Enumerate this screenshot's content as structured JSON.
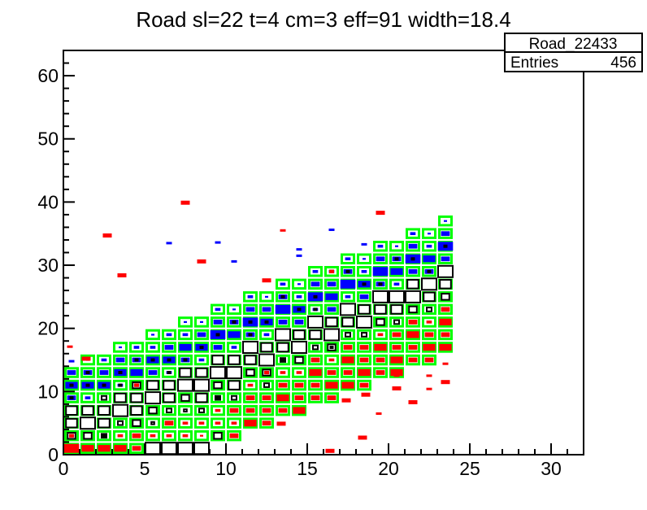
{
  "page_title": "Road sl=22 t=4 cm=3 eff=91 width=18.4",
  "stats_box": {
    "title": "Road_22433",
    "entries_label": "Entries",
    "entries_value": "456"
  },
  "colors": {
    "background": "#ffffff",
    "frame": "#000000",
    "road_outline": "#00ff00",
    "open_box_fill": "#ffffff",
    "open_box_line": "#000000",
    "blue_box": "#0000ff",
    "red_box": "#ff0000"
  },
  "chart_data": {
    "type": "heatmap",
    "subtype": "root-th2-box-overlay",
    "title": "Road sl=22 t=4 cm=3 eff=91 width=18.4",
    "histogram_name": "Road_22433",
    "entries": 456,
    "xlabel": "",
    "ylabel": "",
    "x_range": [
      0,
      32
    ],
    "y_range": [
      0,
      64
    ],
    "x_major_ticks": [
      0,
      5,
      10,
      15,
      20,
      25,
      30
    ],
    "x_minor_step": 1,
    "y_major_ticks": [
      0,
      10,
      20,
      30,
      40,
      50,
      60
    ],
    "y_minor_step": 2,
    "grid": false,
    "legend_position": "none",
    "bin_width": 1,
    "bin_height": 2,
    "size_fractions": {
      "1": 0.18,
      "2": 0.3,
      "3": 0.48,
      "4": 0.68,
      "5": 0.9
    },
    "cell_code_format": "color letter (b=blue filled, w=white open, r=red filled) + size digit 1-5 + optional dot (d=black inner box, e=red inner box); cells listed from road top row to road bottom row",
    "road_columns": [
      {
        "x": 0,
        "row_lo": 0,
        "row_hi": 6,
        "cells_top_to_bottom": [
          "b3",
          "b4d",
          "b3d",
          "w4",
          "w4",
          "w3e",
          "r5"
        ]
      },
      {
        "x": 1,
        "row_lo": 0,
        "row_hi": 7,
        "cells_top_to_bottom": [
          "r1",
          "b3d",
          "b4d",
          "b2",
          "w4",
          "w5",
          "w3",
          "r4"
        ]
      },
      {
        "x": 2,
        "row_lo": 0,
        "row_hi": 7,
        "cells_top_to_bottom": [
          "b2",
          "b3",
          "b4d",
          "w2",
          "w4",
          "w4",
          "w2d",
          "r4"
        ]
      },
      {
        "x": 3,
        "row_lo": 0,
        "row_hi": 8,
        "cells_top_to_bottom": [
          "b1",
          "b3",
          "b4d",
          "b2d",
          "w4",
          "w5",
          "w2",
          "r2",
          "r4"
        ]
      },
      {
        "x": 4,
        "row_lo": 0,
        "row_hi": 8,
        "cells_top_to_bottom": [
          "b2",
          "b3d",
          "b4",
          "w3e",
          "w4",
          "w4",
          "w3",
          "r3",
          "r3"
        ]
      },
      {
        "x": 5,
        "row_lo": 0,
        "row_hi": 9,
        "cells_top_to_bottom": [
          "b1",
          "b2",
          "b4d",
          "b3",
          "w4",
          "w5",
          "w3",
          "w1",
          "r2",
          "w5"
        ]
      },
      {
        "x": 6,
        "row_lo": 0,
        "row_hi": 9,
        "cells_top_to_bottom": [
          "b2",
          "b3",
          "b4d",
          "b2d",
          "w4",
          "w4",
          "w2",
          "r3",
          "r2",
          "w5"
        ]
      },
      {
        "x": 7,
        "row_lo": 0,
        "row_hi": 10,
        "cells_top_to_bottom": [
          "b1",
          "b2",
          "b4",
          "b3d",
          "w4",
          "w5",
          "w3",
          "w1",
          "r2",
          "r2",
          "w5"
        ]
      },
      {
        "x": 8,
        "row_lo": 0,
        "row_hi": 10,
        "cells_top_to_bottom": [
          "b1",
          "b3",
          "b4d",
          "b2",
          "w4",
          "w5",
          "w4",
          "w2",
          "r2",
          "r1",
          "w5"
        ]
      },
      {
        "x": 9,
        "row_lo": 1,
        "row_hi": 11,
        "cells_top_to_bottom": [
          "b2",
          "b3",
          "b5d",
          "b3",
          "w4",
          "w5",
          "w3",
          "w2d",
          "r2",
          "r2",
          "w3"
        ]
      },
      {
        "x": 10,
        "row_lo": 1,
        "row_hi": 11,
        "cells_top_to_bottom": [
          "b1",
          "b3d",
          "b4",
          "b2",
          "w4",
          "w5",
          "w4",
          "w2",
          "r3",
          "r2",
          "r3"
        ]
      },
      {
        "x": 11,
        "row_lo": 2,
        "row_hi": 12,
        "cells_top_to_bottom": [
          "b2",
          "b3",
          "b5d",
          "b3d",
          "w5",
          "w4",
          "w3",
          "r2",
          "r3",
          "r3",
          "r4"
        ]
      },
      {
        "x": 12,
        "row_lo": 2,
        "row_hi": 12,
        "cells_top_to_bottom": [
          "b1",
          "b3",
          "b4d",
          "b2",
          "w4",
          "w5",
          "w3e",
          "w2",
          "r3",
          "r3",
          "r3"
        ]
      },
      {
        "x": 13,
        "row_lo": 3,
        "row_hi": 13,
        "cells_top_to_bottom": [
          "b2",
          "b3d",
          "b5",
          "b3",
          "w5",
          "w4",
          "w2d",
          "r2",
          "r3",
          "r4",
          "r3"
        ]
      },
      {
        "x": 14,
        "row_lo": 3,
        "row_hi": 13,
        "cells_top_to_bottom": [
          "b1",
          "b2",
          "b4d",
          "b3",
          "w4",
          "w5",
          "w3",
          "r2",
          "r3",
          "r3",
          "r4"
        ]
      },
      {
        "x": 15,
        "row_lo": 4,
        "row_hi": 14,
        "cells_top_to_bottom": [
          "b2",
          "b3",
          "b5d",
          "b2d",
          "w5",
          "w4",
          "w2",
          "r3",
          "r4",
          "r3",
          "r3"
        ]
      },
      {
        "x": 16,
        "row_lo": 4,
        "row_hi": 14,
        "cells_top_to_bottom": [
          "b2e",
          "b3",
          "b4",
          "b3",
          "w4",
          "w5",
          "w3d",
          "r2",
          "r3",
          "r4",
          "r3"
        ]
      },
      {
        "x": 17,
        "row_lo": 5,
        "row_hi": 15,
        "cells_top_to_bottom": [
          "b2",
          "b3d",
          "b5",
          "b2",
          "w5",
          "w4",
          "w2",
          "r3",
          "r4",
          "r3",
          "r4"
        ]
      },
      {
        "x": 18,
        "row_lo": 5,
        "row_hi": 15,
        "cells_top_to_bottom": [
          "b1",
          "b2",
          "b4d",
          "b3",
          "w4",
          "w5",
          "w2",
          "r3",
          "r3",
          "r4",
          "r3"
        ]
      },
      {
        "x": 19,
        "row_lo": 6,
        "row_hi": 16,
        "cells_top_to_bottom": [
          "b2",
          "b3",
          "b5",
          "b3d",
          "w5",
          "w4",
          "w3",
          "r2",
          "r4",
          "r3",
          "r3"
        ]
      },
      {
        "x": 20,
        "row_lo": 6,
        "row_hi": 16,
        "cells_top_to_bottom": [
          "b1",
          "b3d",
          "b4",
          "b2",
          "w5",
          "w4",
          "w2",
          "r3",
          "r3",
          "r4",
          "r4"
        ]
      },
      {
        "x": 21,
        "row_lo": 7,
        "row_hi": 17,
        "cells_top_to_bottom": [
          "b2",
          "b3",
          "b5d",
          "b3",
          "w4",
          "w5",
          "w3",
          "r3",
          "r4",
          "r3",
          "r3"
        ]
      },
      {
        "x": 22,
        "row_lo": 7,
        "row_hi": 17,
        "cells_top_to_bottom": [
          "b1",
          "b2",
          "b4",
          "b3d",
          "w5",
          "w4",
          "w2",
          "r2",
          "r3",
          "r4",
          "r3"
        ]
      },
      {
        "x": 23,
        "row_lo": 8,
        "row_hi": 18,
        "cells_top_to_bottom": [
          "b1",
          "b3",
          "b5d",
          "b3",
          "w5",
          "w4",
          "w3",
          "r3",
          "r4",
          "r3",
          "r4"
        ]
      }
    ],
    "outlier_boxes": [
      {
        "x": 0.4,
        "y": 17.1,
        "color": "red",
        "size": 1
      },
      {
        "x": 1.4,
        "y": 15.2,
        "color": "red",
        "size": 2
      },
      {
        "x": 2.7,
        "y": 34.7,
        "color": "red",
        "size": 2
      },
      {
        "x": 3.6,
        "y": 28.4,
        "color": "red",
        "size": 2
      },
      {
        "x": 7.5,
        "y": 39.9,
        "color": "red",
        "size": 2
      },
      {
        "x": 8.5,
        "y": 30.6,
        "color": "red",
        "size": 2
      },
      {
        "x": 12.5,
        "y": 27.6,
        "color": "red",
        "size": 2
      },
      {
        "x": 13.5,
        "y": 35.5,
        "color": "red",
        "size": 1
      },
      {
        "x": 19.5,
        "y": 38.3,
        "color": "red",
        "size": 2
      },
      {
        "x": 13.4,
        "y": 4.9,
        "color": "red",
        "size": 2
      },
      {
        "x": 16.4,
        "y": 0.6,
        "color": "red",
        "size": 2
      },
      {
        "x": 17.4,
        "y": 8.6,
        "color": "red",
        "size": 2
      },
      {
        "x": 18.4,
        "y": 2.7,
        "color": "red",
        "size": 2
      },
      {
        "x": 18.6,
        "y": 9.5,
        "color": "red",
        "size": 2
      },
      {
        "x": 19.4,
        "y": 6.5,
        "color": "red",
        "size": 1
      },
      {
        "x": 20.5,
        "y": 12.5,
        "color": "red",
        "size": 1
      },
      {
        "x": 20.5,
        "y": 10.5,
        "color": "red",
        "size": 2
      },
      {
        "x": 21.5,
        "y": 8.3,
        "color": "red",
        "size": 2
      },
      {
        "x": 22.5,
        "y": 12.5,
        "color": "red",
        "size": 1
      },
      {
        "x": 22.5,
        "y": 10.4,
        "color": "red",
        "size": 1
      },
      {
        "x": 23.5,
        "y": 14.4,
        "color": "red",
        "size": 1
      },
      {
        "x": 23.5,
        "y": 11.5,
        "color": "red",
        "size": 2
      },
      {
        "x": 0.5,
        "y": 14.8,
        "color": "blue",
        "size": 1
      },
      {
        "x": 6.5,
        "y": 33.5,
        "color": "blue",
        "size": 1
      },
      {
        "x": 9.5,
        "y": 33.6,
        "color": "blue",
        "size": 1
      },
      {
        "x": 10.5,
        "y": 30.6,
        "color": "blue",
        "size": 1
      },
      {
        "x": 14.5,
        "y": 32.5,
        "color": "blue",
        "size": 1
      },
      {
        "x": 14.5,
        "y": 31.5,
        "color": "blue",
        "size": 1
      },
      {
        "x": 16.5,
        "y": 35.6,
        "color": "blue",
        "size": 1
      },
      {
        "x": 18.5,
        "y": 33.3,
        "color": "blue",
        "size": 1
      }
    ]
  }
}
